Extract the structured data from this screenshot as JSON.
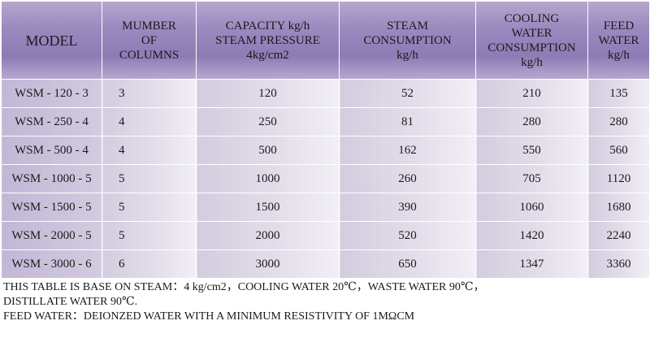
{
  "table": {
    "headers": [
      {
        "key": "model",
        "lines": [
          "MODEL"
        ]
      },
      {
        "key": "columns",
        "lines": [
          "MUMBER",
          "OF",
          "COLUMNS"
        ]
      },
      {
        "key": "capacity",
        "lines": [
          "CAPACITY kg/h",
          "STEAM PRESSURE",
          "4kg/cm2"
        ]
      },
      {
        "key": "steam",
        "lines": [
          "STEAM",
          "CONSUMPTION",
          "kg/h"
        ]
      },
      {
        "key": "cooling",
        "lines": [
          "COOLING",
          "WATER",
          "CONSUMPTION",
          "kg/h"
        ]
      },
      {
        "key": "feed",
        "lines": [
          "FEED",
          "WATER",
          "kg/h"
        ]
      }
    ],
    "rows": [
      {
        "model": "WSM - 120 - 3",
        "columns": "3",
        "capacity": "120",
        "steam": "52",
        "cooling": "210",
        "feed": "135"
      },
      {
        "model": "WSM - 250 - 4",
        "columns": "4",
        "capacity": "250",
        "steam": "81",
        "cooling": "280",
        "feed": "280"
      },
      {
        "model": "WSM - 500 - 4",
        "columns": "4",
        "capacity": "500",
        "steam": "162",
        "cooling": "550",
        "feed": "560"
      },
      {
        "model": "WSM - 1000 - 5",
        "columns": "5",
        "capacity": "1000",
        "steam": "260",
        "cooling": "705",
        "feed": "1120"
      },
      {
        "model": "WSM - 1500 - 5",
        "columns": "5",
        "capacity": "1500",
        "steam": "390",
        "cooling": "1060",
        "feed": "1680"
      },
      {
        "model": "WSM - 2000 - 5",
        "columns": "5",
        "capacity": "2000",
        "steam": "520",
        "cooling": "1420",
        "feed": "2240"
      },
      {
        "model": "WSM - 3000 - 6",
        "columns": "6",
        "capacity": "3000",
        "steam": "650",
        "cooling": "1347",
        "feed": "3360"
      }
    ]
  },
  "notes": {
    "line1": "THIS TABLE IS BASE ON STEAM：4 kg/cm2，COOLING WATER 20℃，WASTE WATER 90℃，",
    "line2": "DISTILLATE WATER 90℃.",
    "line3": "FEED WATER：DEIONZED WATER WITH A MINIMUM RESISTIVITY OF 1MΩCM"
  }
}
